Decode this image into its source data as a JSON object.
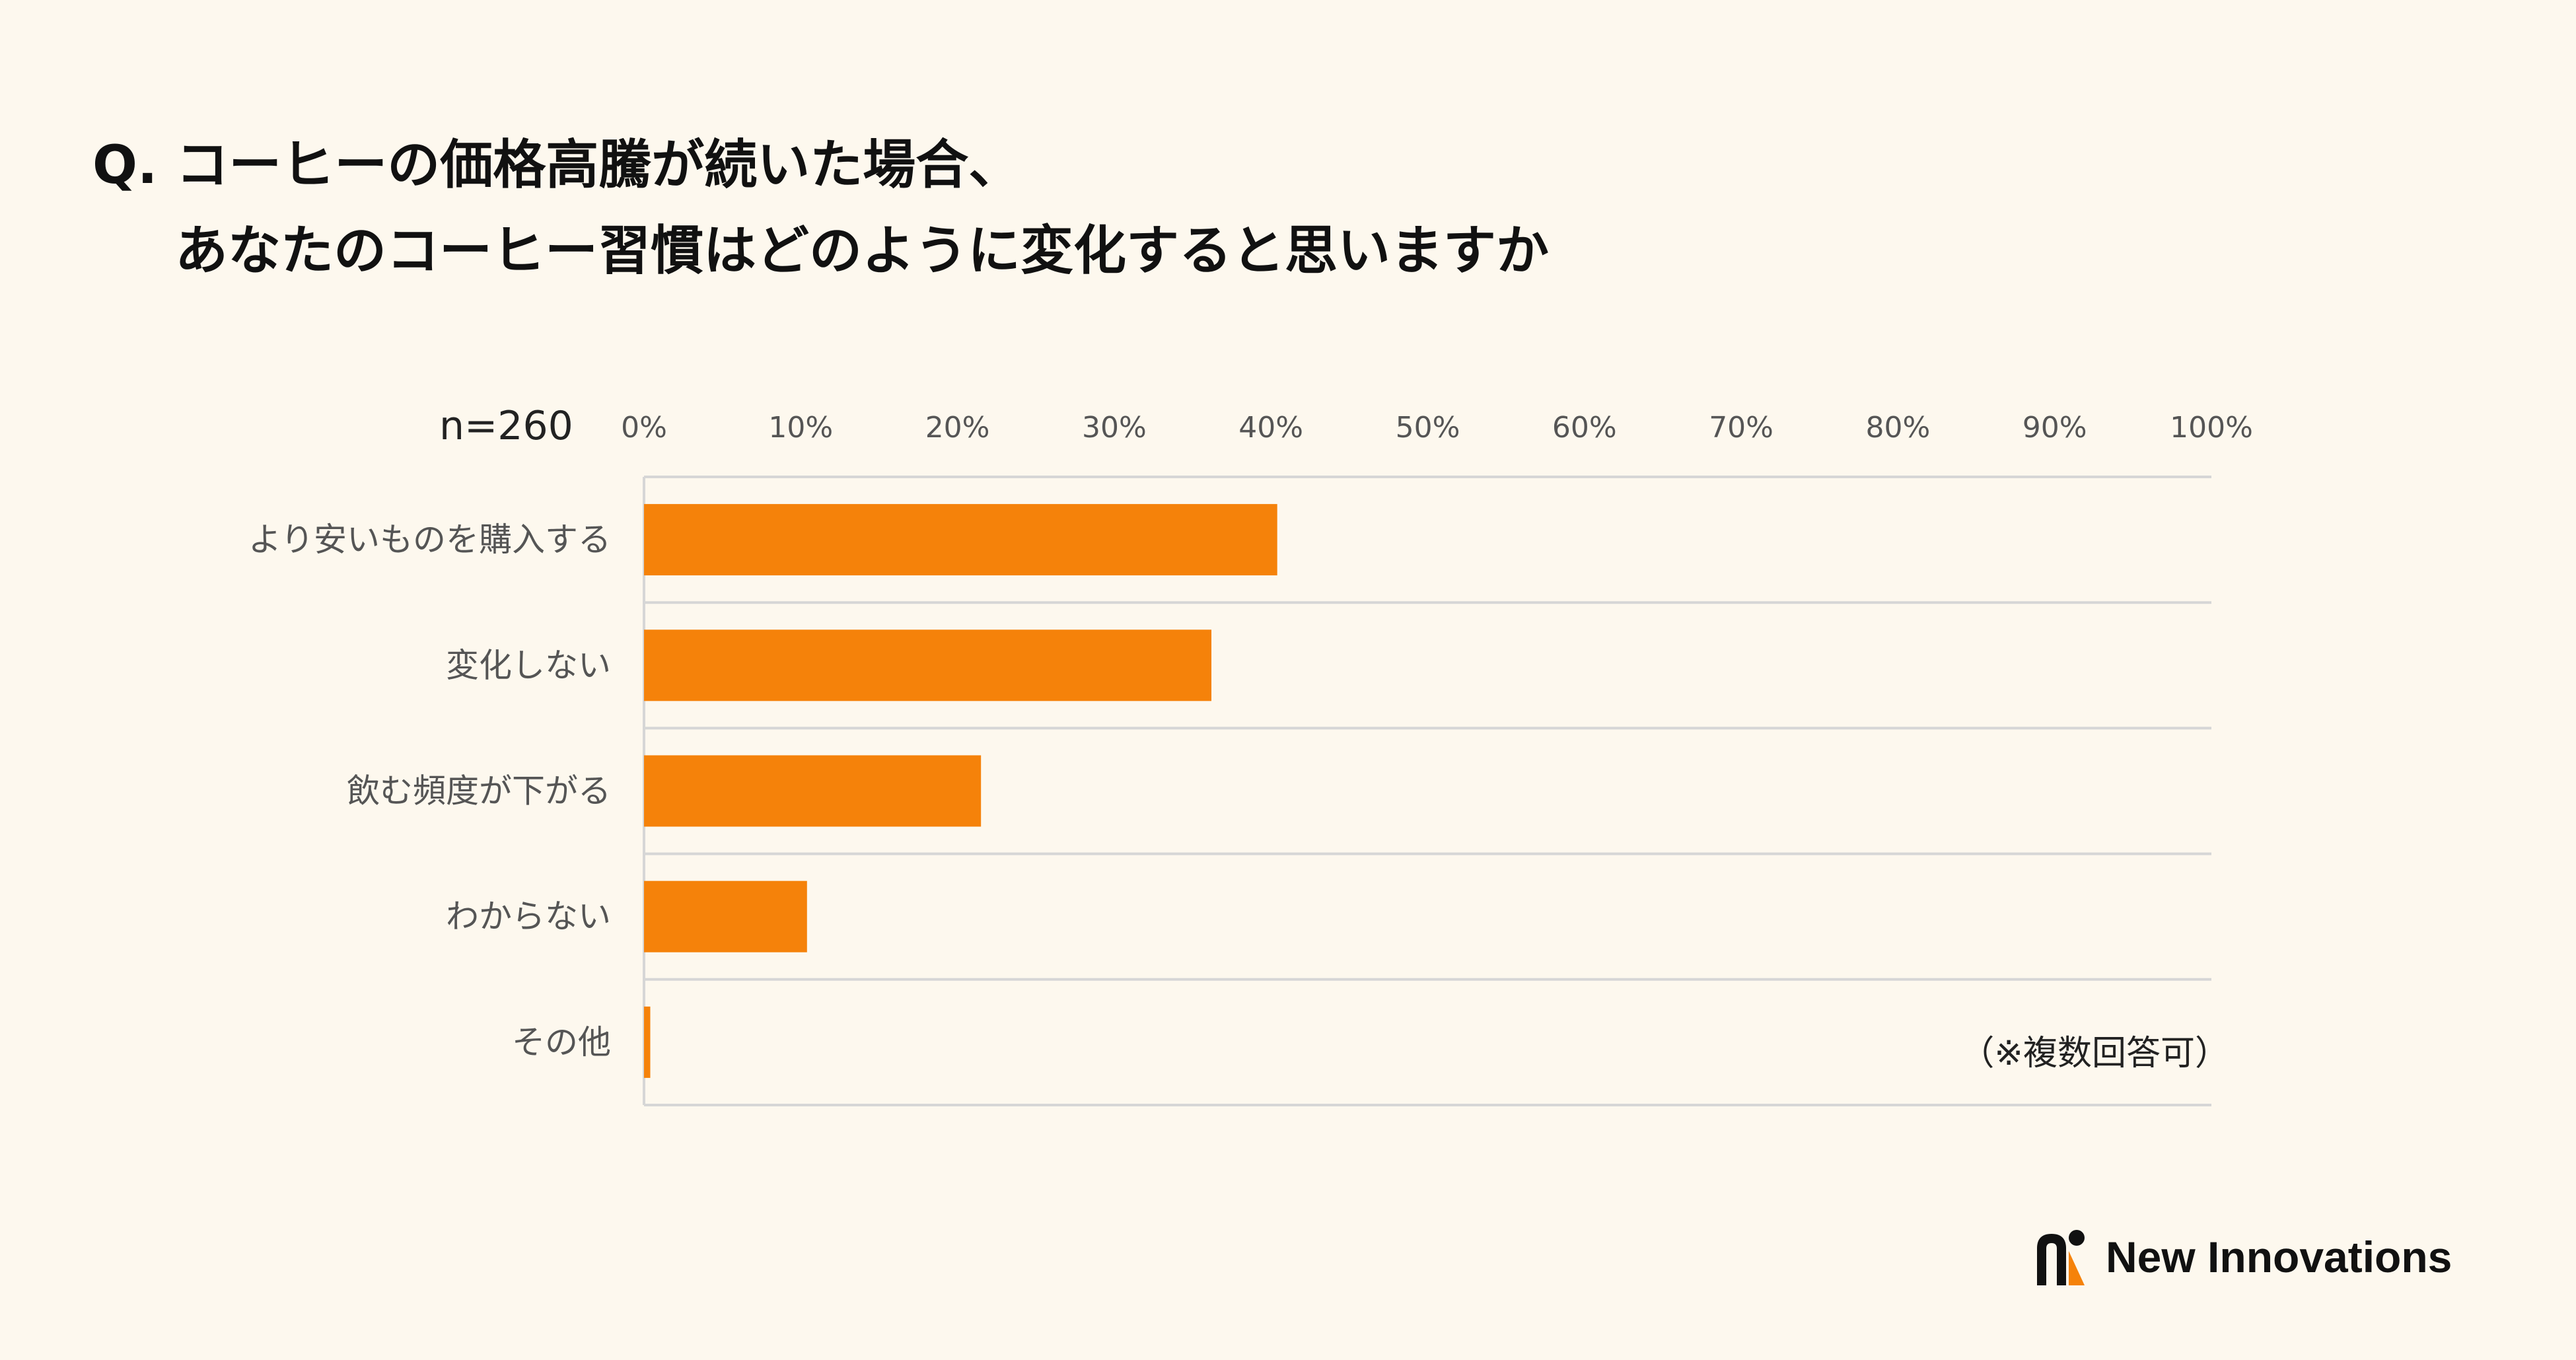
{
  "title": {
    "line1": "Q. コーヒーの価格高騰が続いた場合、",
    "line2": "あなたのコーヒー習慣はどのように変化すると思いますか"
  },
  "sample_size": "n=260",
  "note": "（※複数回答可）",
  "brand": {
    "name": "New Innovations",
    "logo_icon": "ni-logo-icon"
  },
  "colors": {
    "background": "#fdf8ee",
    "bar": "#f5820a",
    "grid": "#d6d6d6"
  },
  "chart_data": {
    "type": "bar",
    "orientation": "horizontal",
    "categories": [
      "より安いものを購入する",
      "変化しない",
      "飲む頻度が下がる",
      "わからない",
      "その他"
    ],
    "values": [
      40.4,
      36.2,
      21.5,
      10.4,
      0.4
    ],
    "x_ticks": [
      "0%",
      "10%",
      "20%",
      "30%",
      "40%",
      "50%",
      "60%",
      "70%",
      "80%",
      "90%",
      "100%"
    ],
    "xlim": [
      0,
      100
    ],
    "grid": true,
    "legend": "none"
  }
}
